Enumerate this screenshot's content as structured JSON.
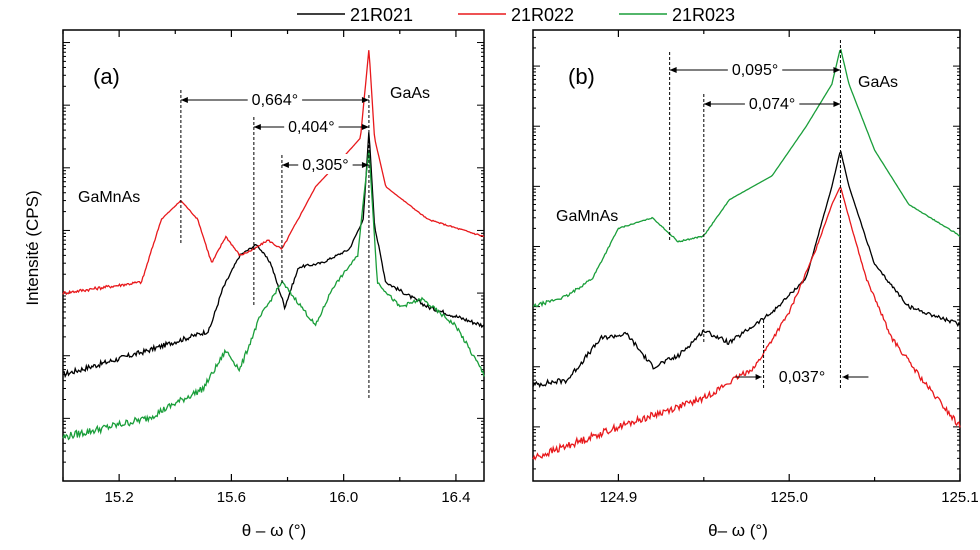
{
  "chart_data": [
    {
      "panel": "(a)",
      "type": "line",
      "xlabel": "θ – ω (°)",
      "ylabel": "Intensité (CPS)",
      "yscale": "log",
      "xlim": [
        15.0,
        16.5
      ],
      "xticks": [
        "15.2",
        "15.6",
        "16.0",
        "16.4"
      ],
      "xtick_values": [
        15.2,
        15.6,
        16.0,
        16.4
      ],
      "series": [
        {
          "name": "21R021",
          "color": "#000000",
          "x": [
            15.0,
            15.3,
            15.52,
            15.57,
            15.63,
            15.69,
            15.74,
            15.79,
            15.84,
            15.92,
            16.02,
            16.07,
            16.09,
            16.11,
            16.15,
            16.3,
            16.5
          ],
          "y": [
            5,
            12,
            25,
            120,
            400,
            600,
            300,
            60,
            260,
            300,
            500,
            1500,
            40000,
            1200,
            150,
            60,
            30
          ]
        },
        {
          "name": "21R022",
          "color": "#e8191c",
          "x": [
            15.0,
            15.28,
            15.35,
            15.42,
            15.48,
            15.53,
            15.58,
            15.63,
            15.68,
            15.73,
            15.78,
            15.9,
            16.0,
            16.06,
            16.09,
            16.11,
            16.15,
            16.3,
            16.5
          ],
          "y": [
            100,
            150,
            1500,
            3000,
            1500,
            300,
            800,
            400,
            500,
            700,
            500,
            5000,
            15000,
            30000,
            800000,
            30000,
            5000,
            1500,
            800
          ]
        },
        {
          "name": "21R023",
          "color": "#1a9e3a",
          "x": [
            15.0,
            15.3,
            15.5,
            15.58,
            15.63,
            15.7,
            15.78,
            15.85,
            15.9,
            15.96,
            16.05,
            16.09,
            16.12,
            16.2,
            16.28,
            16.4,
            16.5
          ],
          "y": [
            0.5,
            1,
            3,
            12,
            6,
            40,
            150,
            60,
            30,
            120,
            400,
            20000,
            150,
            60,
            80,
            30,
            5
          ]
        }
      ],
      "annotations": [
        {
          "text": "0,664°",
          "from": 15.42,
          "to": 16.09
        },
        {
          "text": "0,404°",
          "from": 15.68,
          "to": 16.09
        },
        {
          "text": "0,305°",
          "from": 15.78,
          "to": 16.09
        }
      ],
      "peak_labels": [
        "GaMnAs",
        "GaAs"
      ]
    },
    {
      "panel": "(b)",
      "type": "line",
      "xlabel": "θ– ω (°)",
      "yscale": "log",
      "xlim": [
        124.85,
        125.1
      ],
      "xticks": [
        "124.9",
        "125.0",
        "125.1"
      ],
      "xtick_values": [
        124.9,
        125.0,
        125.1
      ],
      "series": [
        {
          "name": "21R021",
          "color": "#000000",
          "x": [
            124.85,
            124.87,
            124.89,
            124.905,
            124.92,
            124.935,
            124.95,
            124.965,
            124.99,
            125.01,
            125.025,
            125.03,
            125.035,
            125.05,
            125.07,
            125.1
          ],
          "y": [
            5,
            6,
            30,
            35,
            10,
            15,
            40,
            25,
            80,
            300,
            10000,
            40000,
            10000,
            500,
            100,
            50
          ]
        },
        {
          "name": "21R022",
          "color": "#e8191c",
          "x": [
            124.85,
            124.9,
            124.95,
            124.98,
            125.0,
            125.015,
            125.025,
            125.03,
            125.035,
            125.045,
            125.06,
            125.08,
            125.1
          ],
          "y": [
            0.3,
            1,
            3,
            10,
            80,
            800,
            5000,
            10000,
            3000,
            300,
            30,
            5,
            1
          ]
        },
        {
          "name": "21R023",
          "color": "#1a9e3a",
          "x": [
            124.85,
            124.87,
            124.885,
            124.9,
            124.92,
            124.935,
            124.95,
            124.965,
            124.99,
            125.01,
            125.025,
            125.03,
            125.035,
            125.05,
            125.07,
            125.1
          ],
          "y": [
            100,
            150,
            300,
            2000,
            3000,
            1200,
            1500,
            6000,
            15000,
            100000,
            500000,
            2000000,
            500000,
            40000,
            5000,
            1500
          ]
        }
      ],
      "annotations": [
        {
          "text": "0,095°",
          "from": 124.93,
          "to": 125.03
        },
        {
          "text": "0,074°",
          "from": 124.95,
          "to": 125.03
        },
        {
          "text": "0,037°",
          "from": 124.985,
          "to": 125.03
        }
      ],
      "peak_labels": [
        "GaMnAs",
        "GaAs"
      ]
    }
  ]
}
